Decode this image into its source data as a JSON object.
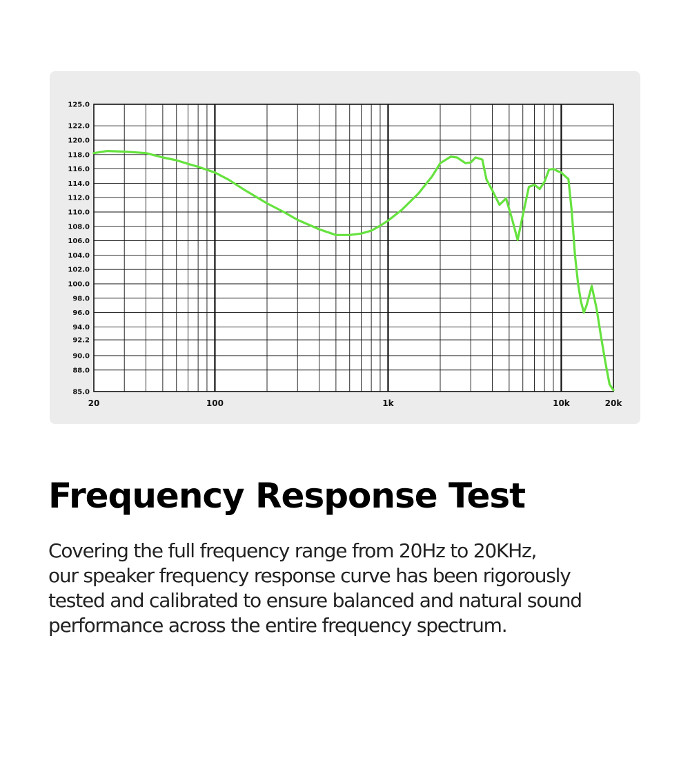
{
  "chart_data": {
    "type": "line",
    "x_scale": "log",
    "xlim": [
      20,
      20000
    ],
    "ylim": [
      85.0,
      125.0
    ],
    "grid": true,
    "line_color": "#66e23f",
    "x_tick_labels": [
      {
        "value": 20,
        "label": "20"
      },
      {
        "value": 100,
        "label": "100"
      },
      {
        "value": 1000,
        "label": "1k"
      },
      {
        "value": 10000,
        "label": "10k"
      },
      {
        "value": 20000,
        "label": "20k"
      }
    ],
    "y_tick_labels": [
      {
        "value": 85.0,
        "label": "85.0"
      },
      {
        "value": 88.0,
        "label": "88.0"
      },
      {
        "value": 90.0,
        "label": "90.0"
      },
      {
        "value": 92.2,
        "label": "92.2"
      },
      {
        "value": 94.0,
        "label": "94.0"
      },
      {
        "value": 96.0,
        "label": "96.0"
      },
      {
        "value": 98.0,
        "label": "98.0"
      },
      {
        "value": 100.0,
        "label": "100.0"
      },
      {
        "value": 102.0,
        "label": "102.0"
      },
      {
        "value": 104.0,
        "label": "104.0"
      },
      {
        "value": 106.0,
        "label": "106.0"
      },
      {
        "value": 108.0,
        "label": "108.0"
      },
      {
        "value": 110.0,
        "label": "110.0"
      },
      {
        "value": 112.0,
        "label": "112.0"
      },
      {
        "value": 114.0,
        "label": "114.0"
      },
      {
        "value": 116.0,
        "label": "116.0"
      },
      {
        "value": 118.0,
        "label": "118.0"
      },
      {
        "value": 120.0,
        "label": "120.0"
      },
      {
        "value": 122.0,
        "label": "122.0"
      },
      {
        "value": 125.0,
        "label": "125.0"
      }
    ],
    "series": [
      {
        "x": [
          20,
          24,
          30,
          40,
          50,
          60,
          70,
          80,
          100,
          120,
          150,
          200,
          250,
          300,
          400,
          500,
          600,
          700,
          800,
          900,
          1000,
          1200,
          1500,
          1800,
          2000,
          2300,
          2500,
          2800,
          3000,
          3200,
          3500,
          3700,
          4000,
          4400,
          4800,
          5200,
          5600,
          6000,
          6500,
          7000,
          7500,
          8000,
          8500,
          9000,
          9500,
          10000,
          10500,
          11000,
          11500,
          12000,
          12500,
          13000,
          13500,
          14000,
          15000,
          16000,
          17000,
          18000,
          19000,
          20000
        ],
        "y": [
          118.2,
          118.5,
          118.4,
          118.2,
          117.6,
          117.2,
          116.7,
          116.3,
          115.5,
          114.5,
          113.0,
          111.2,
          110.0,
          108.9,
          107.6,
          106.8,
          106.8,
          107.0,
          107.4,
          108.1,
          108.8,
          110.3,
          112.6,
          115.0,
          116.8,
          117.7,
          117.6,
          116.8,
          116.9,
          117.6,
          117.3,
          114.5,
          113.0,
          111.0,
          111.9,
          109.0,
          106.1,
          109.6,
          113.5,
          113.8,
          113.2,
          114.2,
          115.9,
          116.0,
          115.7,
          115.5,
          115.0,
          114.6,
          110.0,
          104.0,
          100.0,
          97.5,
          96.0,
          97.0,
          99.7,
          96.5,
          92.5,
          89.0,
          86.0,
          85.2
        ]
      }
    ]
  },
  "heading": "Frequency Response Test",
  "description_lines": [
    "Covering the full frequency range from 20Hz to 20KHz,",
    "our speaker frequency response curve has been rigorously",
    "tested and calibrated to ensure balanced and natural sound",
    "performance across the entire frequency spectrum."
  ]
}
